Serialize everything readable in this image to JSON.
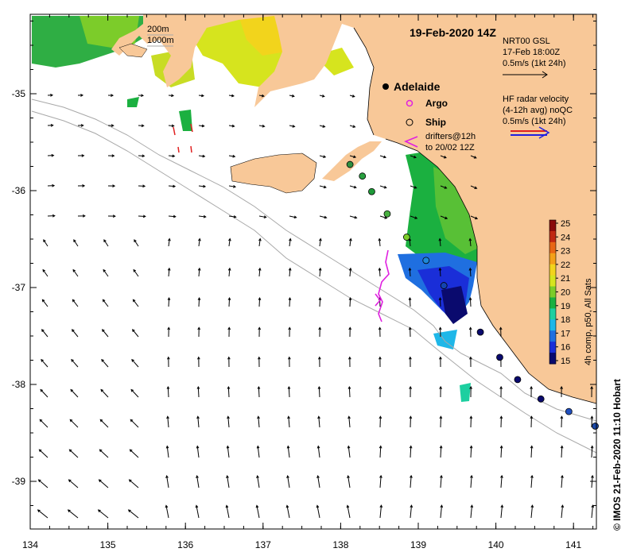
{
  "title": "19-Feb-2020 14Z",
  "depth_legend": {
    "contour1": "200m",
    "contour2": "1000m"
  },
  "place": {
    "name": "Adelaide"
  },
  "markers": {
    "argo": "Argo",
    "ship": "Ship"
  },
  "drifters": {
    "line1": "drifters@12h",
    "line2": "to 20/02 12Z"
  },
  "vector_legend": {
    "model": [
      "NRT00 GSL",
      "17-Feb 18:00Z",
      "0.5m/s (1kt 24h)"
    ],
    "radar": [
      "HF radar velocity",
      "(4-12h avg) noQC",
      "0.5m/s (1kt 24h)"
    ]
  },
  "colorbar": {
    "label": "4h comp, p50, All Sats",
    "ticks": [
      "25",
      "24",
      "23",
      "22",
      "21",
      "20",
      "19",
      "18",
      "17",
      "16",
      "15"
    ],
    "min": 15,
    "max": 25,
    "colors": [
      "#0a0a6e",
      "#1a2ed8",
      "#1f6fe0",
      "#1fb7e8",
      "#1dcfa0",
      "#1bb040",
      "#7ccc2a",
      "#d6e41e",
      "#f2d41c",
      "#f4a018",
      "#e86614",
      "#c02812",
      "#8a0a0a"
    ]
  },
  "credit": "© IMOS 21-Feb-2020 11:10 Hobart",
  "axes": {
    "x_ticks": [
      "134",
      "135",
      "136",
      "137",
      "138",
      "139",
      "140",
      "141"
    ],
    "y_ticks": [
      "-35",
      "-36",
      "-37",
      "-38",
      "-39"
    ],
    "x_range": [
      134,
      141.3
    ],
    "y_range": [
      -39.5,
      -34.2
    ]
  },
  "colors": {
    "land": "#f8c898",
    "ship_marker_fills": [
      "#2f8f3f",
      "#2aa040",
      "#1e9a38",
      "#48b040",
      "#7ccc2a",
      "#1e88d8",
      "#1444b0",
      "#0a0a6e",
      "#0a0a6e",
      "#0a0a6e",
      "#0a0a6e",
      "#2050c0",
      "#1a48a8",
      "#22a8e0"
    ],
    "argo": "#e020e0",
    "drifter_track": "#e020e0"
  }
}
